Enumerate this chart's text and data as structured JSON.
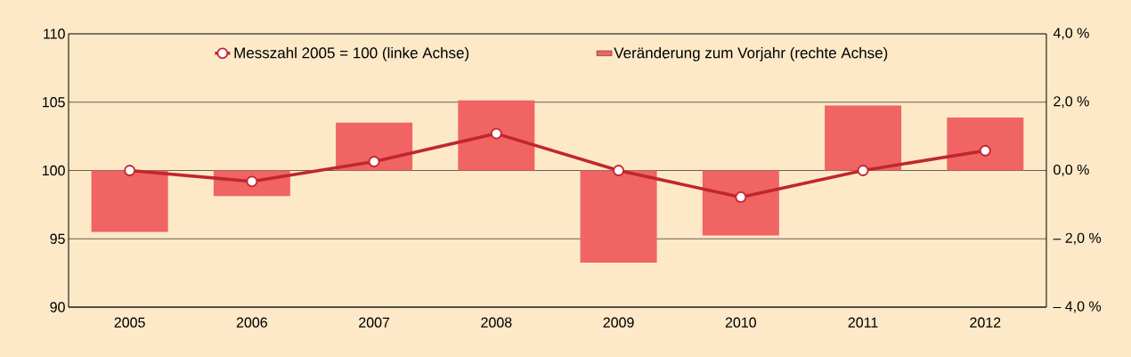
{
  "chart_data": {
    "type": "bar",
    "categories": [
      "2005",
      "2006",
      "2007",
      "2008",
      "2009",
      "2010",
      "2011",
      "2012"
    ],
    "series": [
      {
        "name": "Veränderung zum Vorjahr (rechte Achse)",
        "axis": "y2",
        "color": "#f06464",
        "values": [
          -1.8,
          -0.75,
          1.4,
          2.05,
          -2.7,
          -1.9,
          1.9,
          1.55
        ]
      },
      {
        "name": "Messzahl 2005 = 100 (linke Achse)",
        "type": "line",
        "color": "#c0272d",
        "values": [
          100,
          99.2,
          100.65,
          102.7,
          100,
          98.05,
          100,
          101.45
        ]
      }
    ],
    "ylim": [
      90,
      110
    ],
    "yticks": [
      90,
      95,
      100,
      105,
      110
    ],
    "y2lim": [
      -4,
      4
    ],
    "y2ticks": [
      {
        "value": -4,
        "label": "– 4,0 %"
      },
      {
        "value": -2,
        "label": "– 2,0 %"
      },
      {
        "value": 0,
        "label": "0,0 %"
      },
      {
        "value": 2,
        "label": "2,0 %"
      },
      {
        "value": 4,
        "label": "4,0 %"
      }
    ],
    "grid": "y",
    "legend": "top",
    "marker": "circle"
  }
}
